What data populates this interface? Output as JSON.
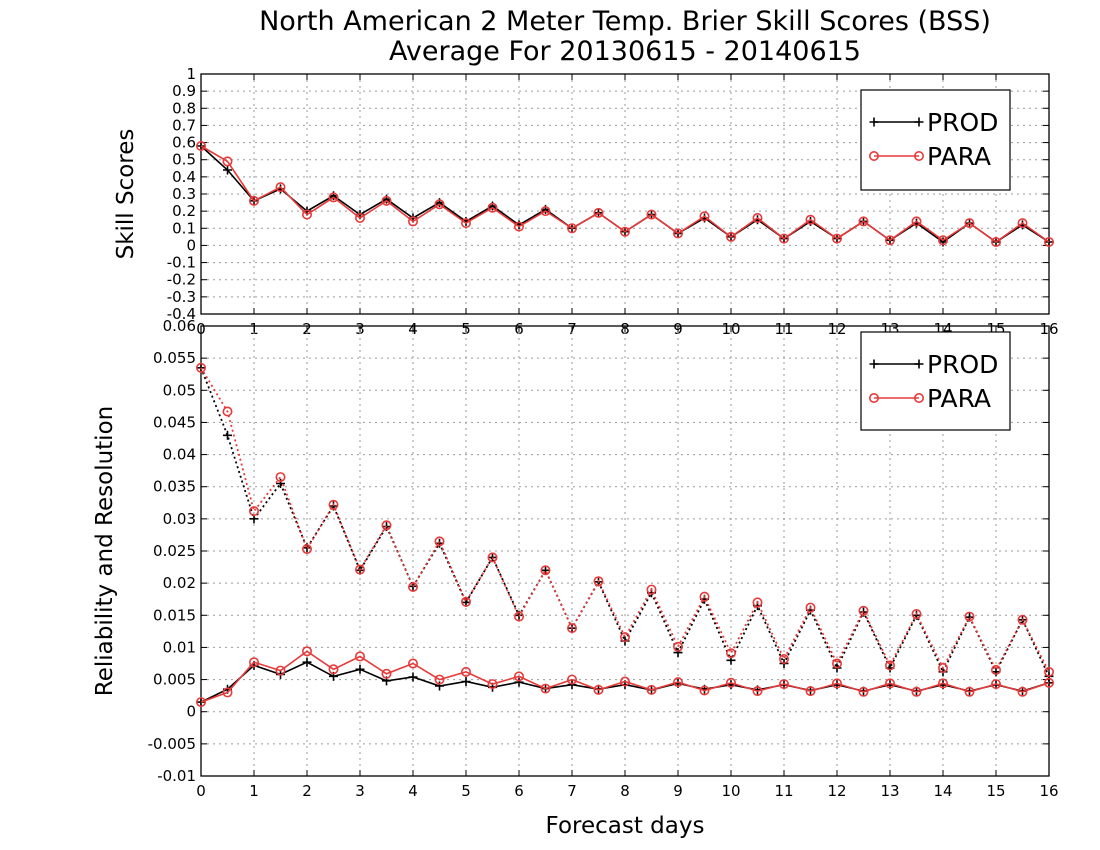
{
  "title_line1": "North American 2 Meter Temp. Brier Skill Scores (BSS)",
  "title_line2": "Average For 20130615 - 20140615",
  "xlabel": "Forecast days",
  "colors": {
    "PROD": "#000000",
    "PARA": "#e83a3a"
  },
  "chart_data": [
    {
      "type": "line",
      "ylabel": "Skill Scores",
      "xlim": [
        0,
        16
      ],
      "ylim": [
        -0.4,
        1
      ],
      "x_ticks": [
        0,
        1,
        2,
        3,
        4,
        5,
        6,
        7,
        8,
        9,
        10,
        11,
        12,
        13,
        14,
        15,
        16
      ],
      "y_ticks": [
        "1",
        "0.9",
        "0.8",
        "0.7",
        "0.6",
        "0.5",
        "0.4",
        "0.3",
        "0.2",
        "0.1",
        "0",
        "-0.1",
        "-0.2",
        "-0.3",
        "-0.4"
      ],
      "y_tick_values": [
        1,
        0.9,
        0.8,
        0.7,
        0.6,
        0.5,
        0.4,
        0.3,
        0.2,
        0.1,
        0,
        -0.1,
        -0.2,
        -0.3,
        -0.4
      ],
      "grid": true,
      "legend": "top-right",
      "legend_entries": [
        "PROD",
        "PARA"
      ],
      "x": [
        0,
        0.5,
        1,
        1.5,
        2,
        2.5,
        3,
        3.5,
        4,
        4.5,
        5,
        5.5,
        6,
        6.5,
        7,
        7.5,
        8,
        8.5,
        9,
        9.5,
        10,
        10.5,
        11,
        11.5,
        12,
        12.5,
        13,
        13.5,
        14,
        14.5,
        15,
        15.5,
        16
      ],
      "series": [
        {
          "name": "PROD",
          "style": "solid",
          "marker": "plus",
          "values": [
            0.58,
            0.44,
            0.26,
            0.33,
            0.2,
            0.29,
            0.18,
            0.27,
            0.16,
            0.25,
            0.14,
            0.23,
            0.12,
            0.21,
            0.1,
            0.19,
            0.08,
            0.18,
            0.07,
            0.16,
            0.05,
            0.15,
            0.04,
            0.14,
            0.04,
            0.14,
            0.03,
            0.13,
            0.02,
            0.13,
            0.02,
            0.12,
            0.02
          ]
        },
        {
          "name": "PARA",
          "style": "solid",
          "marker": "circle",
          "values": [
            0.58,
            0.49,
            0.26,
            0.34,
            0.18,
            0.28,
            0.16,
            0.26,
            0.14,
            0.24,
            0.13,
            0.22,
            0.11,
            0.2,
            0.1,
            0.19,
            0.08,
            0.18,
            0.07,
            0.17,
            0.05,
            0.16,
            0.04,
            0.15,
            0.04,
            0.14,
            0.03,
            0.14,
            0.03,
            0.13,
            0.02,
            0.13,
            0.02
          ]
        }
      ]
    },
    {
      "type": "line",
      "ylabel": "Reliability and Resolution",
      "xlim": [
        0,
        16
      ],
      "ylim": [
        -0.01,
        0.06
      ],
      "x_ticks": [
        0,
        1,
        2,
        3,
        4,
        5,
        6,
        7,
        8,
        9,
        10,
        11,
        12,
        13,
        14,
        15,
        16
      ],
      "y_ticks": [
        "0.06",
        "0.055",
        "0.05",
        "0.045",
        "0.04",
        "0.035",
        "0.03",
        "0.025",
        "0.02",
        "0.015",
        "0.01",
        "0.005",
        "0",
        "-0.005",
        "-0.01"
      ],
      "y_tick_values": [
        0.06,
        0.055,
        0.05,
        0.045,
        0.04,
        0.035,
        0.03,
        0.025,
        0.02,
        0.015,
        0.01,
        0.005,
        0,
        -0.005,
        -0.01
      ],
      "grid": true,
      "legend": "top-right",
      "legend_entries": [
        "PROD",
        "PARA"
      ],
      "x": [
        0,
        0.5,
        1,
        1.5,
        2,
        2.5,
        3,
        3.5,
        4,
        4.5,
        5,
        5.5,
        6,
        6.5,
        7,
        7.5,
        8,
        8.5,
        9,
        9.5,
        10,
        10.5,
        11,
        11.5,
        12,
        12.5,
        13,
        13.5,
        14,
        14.5,
        15,
        15.5,
        16
      ],
      "series": [
        {
          "name": "PROD",
          "style": "dotted",
          "marker": "plus",
          "values": [
            0.0535,
            0.043,
            0.03,
            0.0355,
            0.0255,
            0.032,
            0.022,
            0.0288,
            0.0195,
            0.0262,
            0.017,
            0.024,
            0.015,
            0.022,
            0.013,
            0.0202,
            0.011,
            0.0185,
            0.0092,
            0.0175,
            0.008,
            0.0165,
            0.0075,
            0.0158,
            0.0068,
            0.0155,
            0.0068,
            0.015,
            0.0062,
            0.0147,
            0.0062,
            0.0143,
            0.0055
          ]
        },
        {
          "name": "PARA",
          "style": "dotted",
          "marker": "circle",
          "values": [
            0.0535,
            0.0467,
            0.0312,
            0.0365,
            0.0253,
            0.0322,
            0.0221,
            0.029,
            0.0194,
            0.0265,
            0.0171,
            0.024,
            0.0148,
            0.022,
            0.013,
            0.0203,
            0.0116,
            0.019,
            0.0101,
            0.0179,
            0.0091,
            0.017,
            0.0082,
            0.0162,
            0.0075,
            0.0157,
            0.0072,
            0.0152,
            0.0068,
            0.0148,
            0.0065,
            0.0143,
            0.0062
          ]
        },
        {
          "name": "PROD",
          "style": "solid",
          "marker": "plus",
          "values": [
            0.0015,
            0.0035,
            0.0072,
            0.0058,
            0.0077,
            0.0055,
            0.0066,
            0.0048,
            0.0054,
            0.004,
            0.0047,
            0.0038,
            0.0046,
            0.0036,
            0.0042,
            0.0035,
            0.0042,
            0.0034,
            0.0044,
            0.0035,
            0.0042,
            0.0034,
            0.0042,
            0.0033,
            0.0042,
            0.0032,
            0.0042,
            0.0032,
            0.0042,
            0.0032,
            0.0042,
            0.0032,
            0.0045
          ]
        },
        {
          "name": "PARA",
          "style": "solid",
          "marker": "circle",
          "values": [
            0.0015,
            0.003,
            0.0077,
            0.0064,
            0.0094,
            0.0066,
            0.0086,
            0.0059,
            0.0075,
            0.005,
            0.0062,
            0.0043,
            0.0055,
            0.0036,
            0.005,
            0.0034,
            0.0047,
            0.0034,
            0.0046,
            0.0033,
            0.0045,
            0.0032,
            0.0043,
            0.0032,
            0.0044,
            0.0031,
            0.0044,
            0.0031,
            0.0044,
            0.0031,
            0.0043,
            0.0031,
            0.0045
          ]
        }
      ]
    }
  ]
}
